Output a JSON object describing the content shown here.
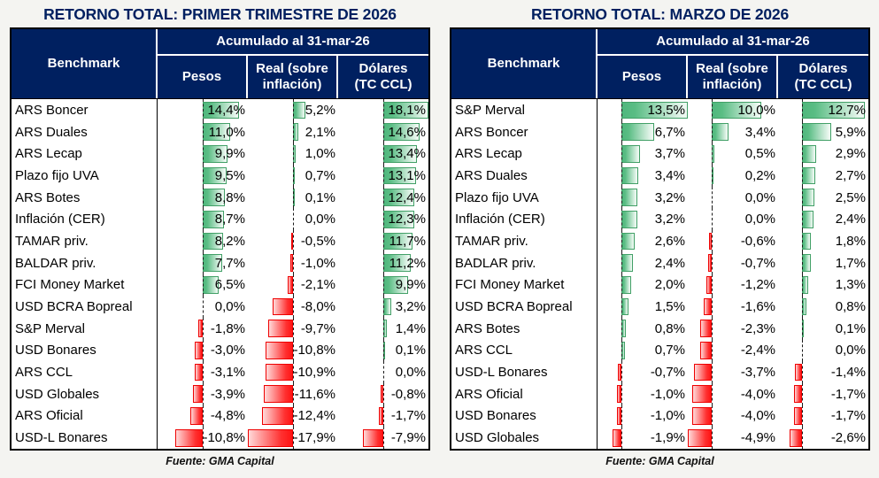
{
  "colors": {
    "navy": "#002060",
    "page_bg": "#f4f4f1",
    "positive_bar": "#5ABD84",
    "positive_border": "#42A067",
    "negative_bar": "#FF2020",
    "negative_border": "#EE0000"
  },
  "value_suffix": "%",
  "chart_data": [
    {
      "type": "table",
      "title": "RETORNO TOTAL: PRIMER TRIMESTRE DE 2026",
      "row_header": "Benchmark",
      "group_header": "Acumulado al 31-mar-26",
      "columns": [
        "Pesos",
        "Real (sobre\ninflación)",
        "Dólares\n(TC CCL)"
      ],
      "categories": [
        "ARS Boncer",
        "ARS Duales",
        "ARS Lecap",
        "Plazo fijo UVA",
        "ARS Botes",
        "Inflación (CER)",
        "TAMAR priv.",
        "BALDAR priv.",
        "FCI Money Market",
        "USD BCRA Bopreal",
        "S&P Merval",
        "USD Bonares",
        "ARS CCL",
        "USD Globales",
        "ARS Oficial",
        "USD-L Bonares"
      ],
      "series": [
        {
          "name": "Pesos",
          "values": [
            14.4,
            11.0,
            9.9,
            9.5,
            8.8,
            8.7,
            8.2,
            7.7,
            6.5,
            0.0,
            -1.8,
            -3.0,
            -3.1,
            -3.9,
            -4.8,
            -10.8
          ]
        },
        {
          "name": "Real (sobre inflación)",
          "values": [
            5.2,
            2.1,
            1.0,
            0.7,
            0.1,
            0.0,
            -0.5,
            -1.0,
            -2.1,
            -8.0,
            -9.7,
            -10.8,
            -10.9,
            -11.6,
            -12.4,
            -17.9
          ]
        },
        {
          "name": "Dólares (TC CCL)",
          "values": [
            18.1,
            14.6,
            13.4,
            13.1,
            12.4,
            12.3,
            11.7,
            11.2,
            9.9,
            3.2,
            1.4,
            0.1,
            0.0,
            -0.8,
            -1.7,
            -7.9
          ]
        }
      ],
      "bar_axis": "shared min/max across all three columns, dashed zero axis, green positive / red negative data bars",
      "source": "Fuente: GMA Capital"
    },
    {
      "type": "table",
      "title": "RETORNO TOTAL: MARZO DE 2026",
      "row_header": "Benchmark",
      "group_header": "Acumulado al 31-mar-26",
      "columns": [
        "Pesos",
        "Real (sobre\ninflación)",
        "Dólares\n(TC CCL)"
      ],
      "categories": [
        "S&P Merval",
        "ARS Boncer",
        "ARS Lecap",
        "ARS Duales",
        "Plazo fijo UVA",
        "Inflación (CER)",
        "TAMAR priv.",
        "BADLAR priv.",
        "FCI Money Market",
        "USD BCRA Bopreal",
        "ARS Botes",
        "ARS CCL",
        "USD-L Bonares",
        "ARS Oficial",
        "USD Bonares",
        "USD Globales"
      ],
      "series": [
        {
          "name": "Pesos",
          "values": [
            13.5,
            6.7,
            3.7,
            3.4,
            3.2,
            3.2,
            2.6,
            2.4,
            2.0,
            1.5,
            0.8,
            0.7,
            -0.7,
            -1.0,
            -1.0,
            -1.9
          ]
        },
        {
          "name": "Real (sobre inflación)",
          "values": [
            10.0,
            3.4,
            0.5,
            0.2,
            0.0,
            0.0,
            -0.6,
            -0.7,
            -1.2,
            -1.6,
            -2.3,
            -2.4,
            -3.7,
            -4.0,
            -4.0,
            -4.9
          ]
        },
        {
          "name": "Dólares (TC CCL)",
          "values": [
            12.7,
            5.9,
            2.9,
            2.7,
            2.5,
            2.4,
            1.8,
            1.7,
            1.3,
            0.8,
            0.1,
            0.0,
            -1.4,
            -1.7,
            -1.7,
            -2.6
          ]
        }
      ],
      "bar_axis": "shared min/max across all three columns, dashed zero axis, green positive / red negative data bars",
      "source": "Fuente: GMA Capital"
    }
  ]
}
